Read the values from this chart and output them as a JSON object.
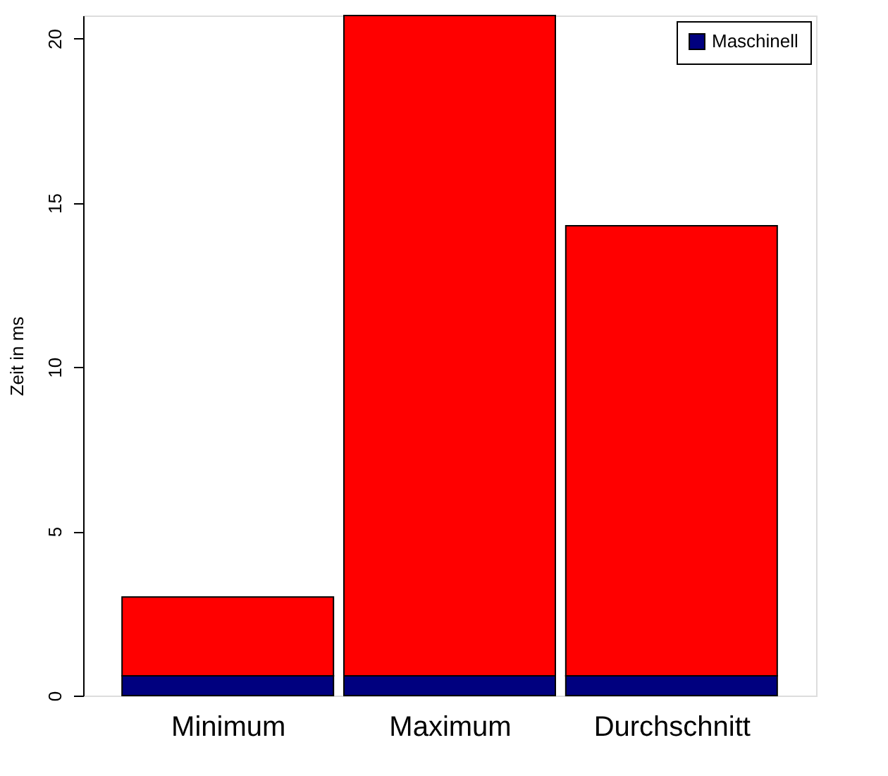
{
  "chart_data": {
    "type": "bar",
    "ylabel": "Zeit in ms",
    "categories": [
      "Minimum",
      "Maximum",
      "Durchschnitt"
    ],
    "stacked": true,
    "series": [
      {
        "name": "Maschinell",
        "color": "#00007f",
        "values": [
          0.6,
          0.6,
          0.6
        ]
      },
      {
        "color": "#ff0000",
        "values": [
          2.4,
          20.1,
          13.7
        ]
      }
    ],
    "ylim": [
      0,
      20.7
    ],
    "yticks": [
      0,
      5,
      10,
      15,
      20
    ],
    "grid": false,
    "legend": "top right"
  }
}
